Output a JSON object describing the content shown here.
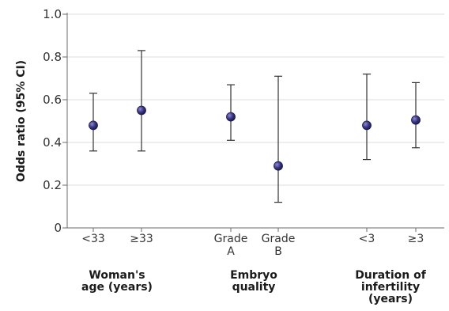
{
  "chart_data": {
    "type": "scatter",
    "title": "",
    "ylabel": "Odds ratio (95% CI)",
    "ylim": [
      0,
      1.0
    ],
    "yticks": [
      "0",
      "0.2",
      "0.4",
      "0.6",
      "0.8",
      "1.0"
    ],
    "grid": true,
    "marker_color": "#3d3a86",
    "groups": [
      {
        "label": [
          "Woman's",
          "age (years)"
        ],
        "categories": [
          {
            "label": [
              "<33"
            ],
            "estimate": 0.48,
            "ci_low": 0.36,
            "ci_high": 0.63
          },
          {
            "label": [
              "≥33"
            ],
            "estimate": 0.55,
            "ci_low": 0.36,
            "ci_high": 0.83
          }
        ]
      },
      {
        "label": [
          "Embryo",
          "quality"
        ],
        "categories": [
          {
            "label": [
              "Grade",
              "A"
            ],
            "estimate": 0.52,
            "ci_low": 0.41,
            "ci_high": 0.67
          },
          {
            "label": [
              "Grade",
              "B"
            ],
            "estimate": 0.29,
            "ci_low": 0.12,
            "ci_high": 0.71
          }
        ]
      },
      {
        "label": [
          "Duration of",
          "infertility",
          "(years)"
        ],
        "categories": [
          {
            "label": [
              "<3"
            ],
            "estimate": 0.48,
            "ci_low": 0.32,
            "ci_high": 0.72
          },
          {
            "label": [
              "≥3"
            ],
            "estimate": 0.505,
            "ci_low": 0.375,
            "ci_high": 0.68
          }
        ]
      }
    ]
  }
}
